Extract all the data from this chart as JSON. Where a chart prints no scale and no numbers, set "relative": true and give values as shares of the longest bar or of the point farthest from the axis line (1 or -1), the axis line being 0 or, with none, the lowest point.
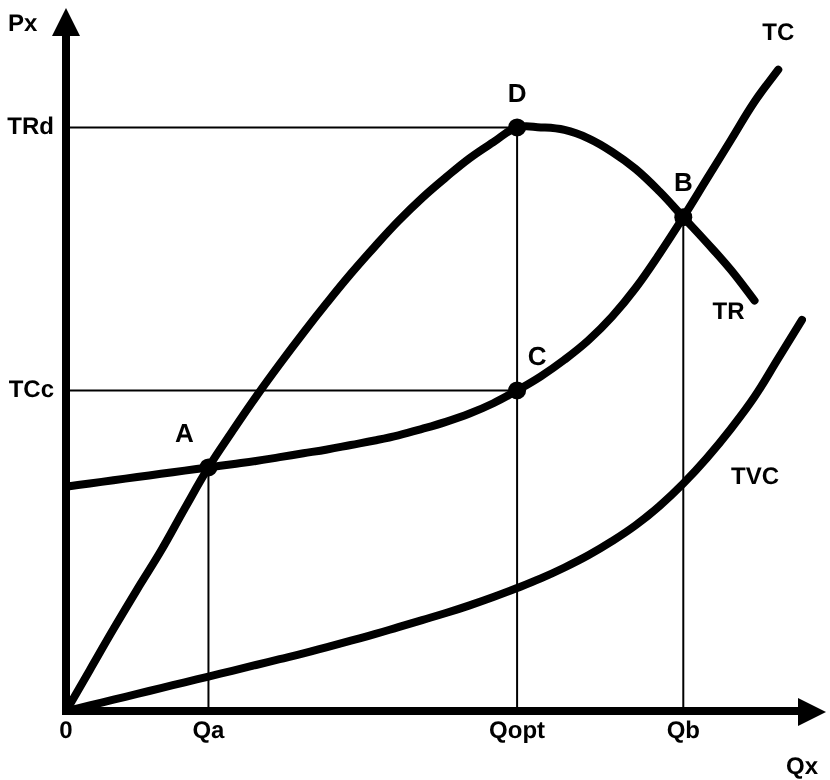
{
  "chart_data": {
    "type": "line",
    "relative": true,
    "xlabel": "Qx",
    "ylabel": "Px",
    "categories": [
      "0",
      null,
      null,
      null,
      null,
      null,
      "Qa",
      null,
      null,
      null,
      null,
      null,
      null,
      null,
      null,
      null,
      null,
      null,
      null,
      "Qopt",
      null,
      null,
      null,
      null,
      null,
      null,
      "Qb",
      null,
      null,
      null,
      null,
      null
    ],
    "series": [
      {
        "name": "TC",
        "color": "#000000",
        "values": [
          0.35,
          0.355,
          0.36,
          0.365,
          0.37,
          0.375,
          0.38,
          0.385,
          0.39,
          0.396,
          0.402,
          0.408,
          0.415,
          0.422,
          0.43,
          0.44,
          0.451,
          0.464,
          0.48,
          0.5,
          0.522,
          0.548,
          0.578,
          0.615,
          0.66,
          0.713,
          0.77,
          0.83,
          0.89,
          0.95,
          1.0,
          null
        ]
      },
      {
        "name": "TR",
        "color": "#000000",
        "values": [
          0,
          0.064,
          0.128,
          0.19,
          0.25,
          0.316,
          0.38,
          0.436,
          0.49,
          0.541,
          0.59,
          0.637,
          0.682,
          0.724,
          0.764,
          0.8,
          0.832,
          0.862,
          0.887,
          0.91,
          0.91,
          0.906,
          0.893,
          0.872,
          0.845,
          0.81,
          0.77,
          0.73,
          0.688,
          0.64,
          null,
          null
        ]
      },
      {
        "name": "TVC",
        "color": "#000000",
        "values": [
          0,
          0.009,
          0.018,
          0.027,
          0.036,
          0.045,
          0.054,
          0.063,
          0.072,
          0.081,
          0.09,
          0.1,
          0.11,
          0.12,
          0.131,
          0.142,
          0.153,
          0.165,
          0.178,
          0.192,
          0.207,
          0.224,
          0.243,
          0.265,
          0.29,
          0.32,
          0.355,
          0.395,
          0.44,
          0.49,
          0.55,
          0.61
        ]
      }
    ],
    "annotations": [
      {
        "text": "A",
        "x": "Qa",
        "y": 0.38
      },
      {
        "text": "D",
        "x": "Qopt",
        "y": 0.91
      },
      {
        "text": "C",
        "x": "Qopt",
        "y": 0.5
      },
      {
        "text": "B",
        "x": "Qb",
        "y": 0.77
      }
    ],
    "ref_lines": [
      {
        "axis": "y",
        "value": 0.91,
        "label": "TRd",
        "color": "#000000"
      },
      {
        "axis": "y",
        "value": 0.5,
        "label": "TCc",
        "color": "#000000"
      },
      {
        "axis": "x",
        "value": "Qa",
        "color": "#000000"
      },
      {
        "axis": "x",
        "value": "Qopt",
        "color": "#000000"
      },
      {
        "axis": "x",
        "value": "Qb",
        "color": "#000000"
      }
    ],
    "grid": false,
    "legend": false,
    "marker": "none",
    "line_style": "solid"
  }
}
